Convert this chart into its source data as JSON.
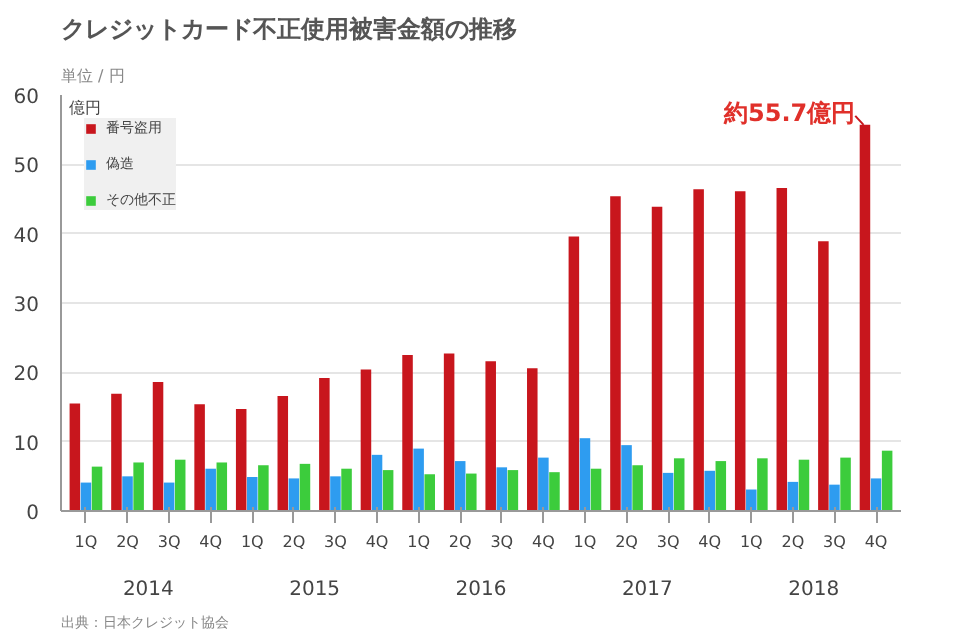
{
  "chart_data": {
    "type": "bar",
    "title": "クレジットカード不正使用被害金額の推移",
    "subtitle": "単位 / 円",
    "ylabel": "億円",
    "categories": [
      "1Q",
      "2Q",
      "3Q",
      "4Q",
      "1Q",
      "2Q",
      "3Q",
      "4Q",
      "1Q",
      "2Q",
      "3Q",
      "4Q",
      "1Q",
      "2Q",
      "3Q",
      "4Q",
      "1Q",
      "2Q",
      "3Q",
      "4Q"
    ],
    "series": [
      {
        "name": "番号盗用",
        "color": "#c8161d",
        "values": [
          15.5,
          16.9,
          18.6,
          15.4,
          14.7,
          16.6,
          19.2,
          20.4,
          22.5,
          22.7,
          21.6,
          20.6,
          39.6,
          45.4,
          43.9,
          46.4,
          46.1,
          46.6,
          38.9,
          55.7
        ]
      },
      {
        "name": "偽造",
        "color": "#2e9cf0",
        "values": [
          4.1,
          5.0,
          4.1,
          6.1,
          4.9,
          4.7,
          5.0,
          8.1,
          9.0,
          7.2,
          6.3,
          7.7,
          10.5,
          9.5,
          5.5,
          5.8,
          3.1,
          4.2,
          3.8,
          4.7
        ]
      },
      {
        "name": "その他不正",
        "color": "#3ccc3c",
        "values": [
          6.4,
          7.0,
          7.4,
          7.0,
          6.6,
          6.8,
          6.1,
          5.9,
          5.3,
          5.4,
          5.9,
          5.6,
          6.1,
          6.6,
          7.6,
          7.2,
          7.6,
          7.4,
          7.7,
          8.7
        ]
      }
    ],
    "ylim": [
      0,
      60
    ],
    "yticks": [
      0,
      10,
      20,
      30,
      40,
      50,
      60
    ],
    "grid": "y",
    "legend": "top left",
    "annotations": [
      "約55.7億円",
      "2014",
      "2015",
      "2016",
      "2017",
      "2018",
      "出典：日本クレジット協会"
    ]
  }
}
